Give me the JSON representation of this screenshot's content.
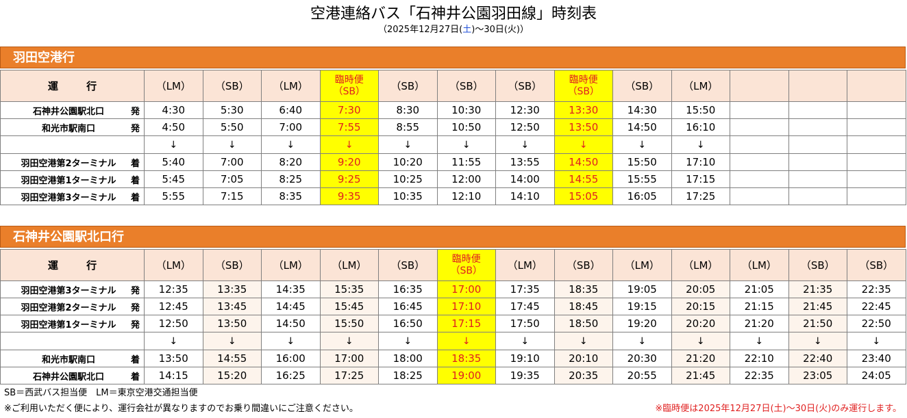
{
  "title": "空港連絡バス「石神井公園羽田線」時刻表",
  "subtitle": {
    "prefix": "（2025年12月27日(",
    "sat": "土",
    "middle": ")～30日(火)）"
  },
  "section1": {
    "title": "羽田空港行",
    "header_label": "運 行",
    "columns": [
      "（LM）",
      "（SB）",
      "（LM）",
      "臨時便|（SB）",
      "（SB）",
      "（SB）",
      "（SB）",
      "臨時便|（SB）",
      "（SB）",
      "（LM）",
      "",
      "",
      ""
    ],
    "special_cols": [
      3,
      7
    ],
    "alt_cols": [],
    "rows": [
      {
        "stop": "石神井公園駅北口",
        "type": "発",
        "times": [
          "4:30",
          "5:30",
          "6:40",
          "7:30",
          "8:30",
          "10:30",
          "12:30",
          "13:30",
          "14:30",
          "15:50",
          "",
          "",
          ""
        ]
      },
      {
        "stop": "和光市駅南口",
        "type": "発",
        "times": [
          "4:50",
          "5:50",
          "7:00",
          "7:55",
          "8:55",
          "10:50",
          "12:50",
          "13:50",
          "14:50",
          "16:10",
          "",
          "",
          ""
        ]
      },
      {
        "arrow": true,
        "times": [
          "↓",
          "↓",
          "↓",
          "↓",
          "↓",
          "↓",
          "↓",
          "↓",
          "↓",
          "↓",
          "",
          "",
          ""
        ]
      },
      {
        "stop": "羽田空港第2ターミナル",
        "type": "着",
        "times": [
          "5:40",
          "7:00",
          "8:20",
          "9:20",
          "10:20",
          "11:55",
          "13:55",
          "14:50",
          "15:50",
          "17:10",
          "",
          "",
          ""
        ]
      },
      {
        "stop": "羽田空港第1ターミナル",
        "type": "着",
        "times": [
          "5:45",
          "7:05",
          "8:25",
          "9:25",
          "10:25",
          "12:00",
          "14:00",
          "14:55",
          "15:55",
          "17:15",
          "",
          "",
          ""
        ]
      },
      {
        "stop": "羽田空港第3ターミナル",
        "type": "着",
        "times": [
          "5:55",
          "7:15",
          "8:35",
          "9:35",
          "10:35",
          "12:10",
          "14:10",
          "15:05",
          "16:05",
          "17:25",
          "",
          "",
          ""
        ]
      }
    ]
  },
  "section2": {
    "title": "石神井公園駅北口行",
    "header_label": "運 行",
    "columns": [
      "（LM）",
      "（SB）",
      "（LM）",
      "（LM）",
      "（SB）",
      "臨時便|（SB）",
      "（LM）",
      "（SB）",
      "（LM）",
      "（LM）",
      "（LM）",
      "（SB）",
      "（SB）"
    ],
    "special_cols": [
      5
    ],
    "alt_cols": [
      1,
      3,
      7,
      9,
      11
    ],
    "rows": [
      {
        "stop": "羽田空港第3ターミナル",
        "type": "発",
        "times": [
          "12:35",
          "13:35",
          "14:35",
          "15:35",
          "16:35",
          "17:00",
          "17:35",
          "18:35",
          "19:05",
          "20:05",
          "21:05",
          "21:35",
          "22:35"
        ]
      },
      {
        "stop": "羽田空港第2ターミナル",
        "type": "発",
        "times": [
          "12:45",
          "13:45",
          "14:45",
          "15:45",
          "16:45",
          "17:10",
          "17:45",
          "18:45",
          "19:15",
          "20:15",
          "21:15",
          "21:45",
          "22:45"
        ]
      },
      {
        "stop": "羽田空港第1ターミナル",
        "type": "発",
        "times": [
          "12:50",
          "13:50",
          "14:50",
          "15:50",
          "16:50",
          "17:15",
          "17:50",
          "18:50",
          "19:20",
          "20:20",
          "21:20",
          "21:50",
          "22:50"
        ]
      },
      {
        "arrow": true,
        "times": [
          "↓",
          "↓",
          "↓",
          "↓",
          "↓",
          "↓",
          "↓",
          "↓",
          "↓",
          "↓",
          "↓",
          "↓",
          "↓"
        ]
      },
      {
        "stop": "和光市駅南口",
        "type": "着",
        "times": [
          "13:50",
          "14:55",
          "16:00",
          "17:00",
          "18:00",
          "18:35",
          "19:10",
          "20:10",
          "20:30",
          "21:20",
          "22:10",
          "22:40",
          "23:40"
        ]
      },
      {
        "stop": "石神井公園駅北口",
        "type": "着",
        "times": [
          "14:15",
          "15:20",
          "16:25",
          "17:25",
          "18:25",
          "19:00",
          "19:35",
          "20:35",
          "20:55",
          "21:45",
          "22:35",
          "23:05",
          "24:05"
        ]
      }
    ]
  },
  "footer": {
    "note1": "SB＝西武バス担当便　LM＝東京空港交通担当便",
    "note2": "※ご利用いただく便により、運行会社が異なりますのでお乗り間違いにご注意ください。",
    "note3": "※臨時便は2025年12月27日(土)～30日(火)のみ運行します。"
  }
}
